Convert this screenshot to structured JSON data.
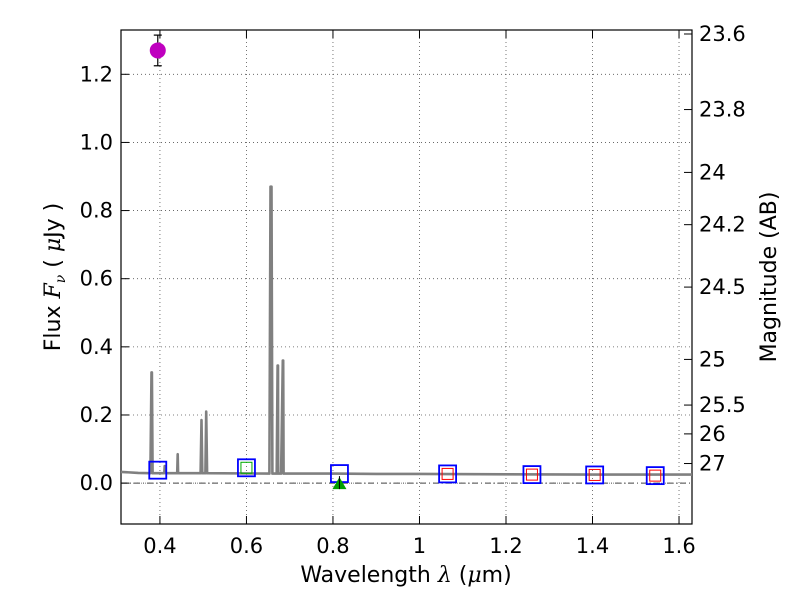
{
  "chart_data": {
    "type": "scatter",
    "title": "",
    "xlabel": {
      "text": "Wavelength",
      "symbol": "λ",
      "unit_open": " (",
      "mu": "μ",
      "unit_close": "m)"
    },
    "ylabel": {
      "text": "Flux",
      "symbol": "F",
      "sub": "ν",
      "unit_open": "( ",
      "mu": "μ",
      "unit_close": "Jy )"
    },
    "y2label": "Magnitude (AB)",
    "xlim": [
      0.31,
      1.63
    ],
    "ylim": [
      -0.12,
      1.33
    ],
    "grid": true,
    "x_ticks": [
      0.4,
      0.6,
      0.8,
      1.0,
      1.2,
      1.4,
      1.6
    ],
    "x_tick_labels": [
      "0.4",
      "0.6",
      "0.8",
      "1",
      "1.2",
      "1.4",
      "1.6"
    ],
    "y_ticks": [
      0.0,
      0.2,
      0.4,
      0.6,
      0.8,
      1.0,
      1.2
    ],
    "y_tick_labels": [
      "0.0",
      "0.2",
      "0.4",
      "0.6",
      "0.8",
      "1.0",
      "1.2"
    ],
    "mag_ticks": [
      {
        "label": "23.6",
        "flux": 1.3183
      },
      {
        "label": "23.8",
        "flux": 1.0965
      },
      {
        "label": "24",
        "flux": 0.912
      },
      {
        "label": "24.2",
        "flux": 0.7586
      },
      {
        "label": "24.5",
        "flux": 0.5754
      },
      {
        "label": "25",
        "flux": 0.3631
      },
      {
        "label": "25.5",
        "flux": 0.2291
      },
      {
        "label": "26",
        "flux": 0.1445
      },
      {
        "label": "27",
        "flux": 0.0575
      }
    ],
    "colors": {
      "spectrum": "#808080",
      "photometry_point": "#bf00bf",
      "filter_box": "#0000ff",
      "model_box_green": "#00aa00",
      "model_box_red": "#ff0000",
      "upper_limit": "#00a000"
    },
    "series": [
      {
        "name": "model spectrum",
        "type": "line",
        "x": [
          0.31,
          0.35,
          0.378,
          0.3805,
          0.3815,
          0.383,
          0.41,
          0.411,
          0.413,
          0.44,
          0.441,
          0.442,
          0.494,
          0.496,
          0.498,
          0.505,
          0.507,
          0.509,
          0.653,
          0.6555,
          0.658,
          0.66,
          0.67,
          0.672,
          0.673,
          0.6735,
          0.675,
          0.68,
          0.684,
          0.685,
          0.686,
          0.7,
          0.8,
          0.9,
          1.0,
          1.2,
          1.4,
          1.63
        ],
        "y": [
          0.033,
          0.03,
          0.029,
          0.325,
          0.325,
          0.029,
          0.029,
          0.05,
          0.029,
          0.029,
          0.085,
          0.029,
          0.029,
          0.185,
          0.029,
          0.029,
          0.21,
          0.029,
          0.028,
          0.87,
          0.87,
          0.028,
          0.028,
          0.345,
          0.345,
          0.028,
          0.028,
          0.028,
          0.36,
          0.36,
          0.028,
          0.028,
          0.028,
          0.027,
          0.027,
          0.026,
          0.025,
          0.025
        ]
      },
      {
        "name": "observed photometry",
        "type": "errorbar",
        "points": [
          {
            "x": 0.395,
            "y": 1.27,
            "yerr": 0.045
          }
        ]
      },
      {
        "name": "filter synthetic photometry",
        "type": "box",
        "points": [
          {
            "x": 0.395,
            "y": 0.038
          },
          {
            "x": 0.6,
            "y": 0.045
          },
          {
            "x": 0.815,
            "y": 0.028
          },
          {
            "x": 1.065,
            "y": 0.027
          },
          {
            "x": 1.26,
            "y": 0.025
          },
          {
            "x": 1.405,
            "y": 0.024
          },
          {
            "x": 1.545,
            "y": 0.022
          }
        ]
      },
      {
        "name": "model photometry",
        "type": "inner_box",
        "points": [
          {
            "x": 0.6,
            "y": 0.045,
            "color": "green"
          },
          {
            "x": 1.065,
            "y": 0.027,
            "color": "red"
          },
          {
            "x": 1.26,
            "y": 0.025,
            "color": "red"
          },
          {
            "x": 1.405,
            "y": 0.024,
            "color": "red"
          },
          {
            "x": 1.545,
            "y": 0.022,
            "color": "red"
          }
        ]
      },
      {
        "name": "upper limit",
        "type": "triangle",
        "points": [
          {
            "x": 0.815,
            "y": 0.0
          }
        ]
      }
    ]
  }
}
